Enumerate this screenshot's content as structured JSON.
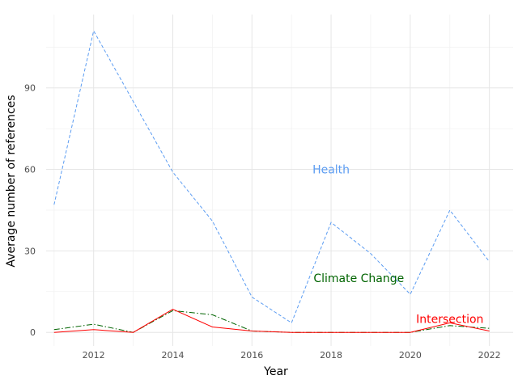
{
  "chart_data": {
    "type": "line",
    "xlabel": "Year",
    "ylabel": "Average number of references",
    "xlim": [
      2010.8,
      2022.6
    ],
    "ylim": [
      -5,
      117
    ],
    "x_ticks": [
      2012,
      2014,
      2016,
      2018,
      2020,
      2022
    ],
    "y_ticks": [
      0,
      30,
      60,
      90
    ],
    "grid": true,
    "x": [
      2011,
      2012,
      2013,
      2014,
      2015,
      2016,
      2017,
      2018,
      2019,
      2020,
      2021,
      2022
    ],
    "series": [
      {
        "key": "health",
        "color": "#5b9cf2",
        "dash": "dashed",
        "values": [
          47,
          111,
          85,
          59,
          41,
          13,
          3.5,
          40.5,
          29,
          14,
          45,
          26
        ]
      },
      {
        "key": "climate",
        "color": "#006400",
        "dash": "dashdot",
        "values": [
          1,
          3,
          0,
          8,
          6.5,
          0.5,
          0,
          0,
          0,
          0,
          2.5,
          1.5
        ]
      },
      {
        "key": "intersection",
        "color": "#ff0000",
        "dash": "solid",
        "values": [
          0,
          1,
          0,
          8.5,
          2,
          0.5,
          0,
          0,
          0,
          0,
          3.5,
          0.5
        ]
      }
    ],
    "annotations": [
      {
        "text": "Health",
        "color": "#5b9cf2",
        "x": 2018.0,
        "y": 60
      },
      {
        "text": "Climate Change",
        "color": "#006400",
        "x": 2018.7,
        "y": 20
      },
      {
        "text": "Intersection",
        "color": "#ff0000",
        "x": 2021.0,
        "y": 5
      }
    ]
  }
}
